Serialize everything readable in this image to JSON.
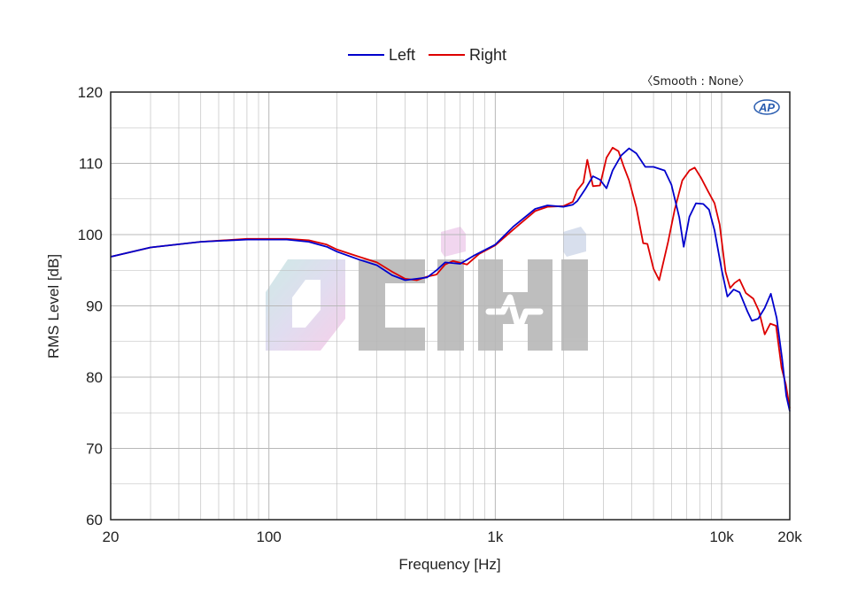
{
  "colors": {
    "left": "#0000cc",
    "right": "#dd0000",
    "grid": "#b8b8b8",
    "frame": "#222222"
  },
  "legend": {
    "left_label": "Left",
    "right_label": "Right"
  },
  "annotation": "〈Smooth : None〉",
  "ap_logo": "AP",
  "watermark_icon": "ocihi-logo-watermark",
  "chart_data": {
    "type": "line",
    "xlabel": "Frequency [Hz]",
    "ylabel": "RMS Level [dB]",
    "xscale": "log",
    "xlim": [
      20,
      20000
    ],
    "ylim": [
      60,
      120
    ],
    "grid": true,
    "legend_position": "top-center",
    "x_ticks": [
      {
        "value": 20,
        "label": "20"
      },
      {
        "value": 100,
        "label": "100"
      },
      {
        "value": 1000,
        "label": "1k"
      },
      {
        "value": 10000,
        "label": "10k"
      },
      {
        "value": 20000,
        "label": "20k"
      }
    ],
    "y_ticks": [
      {
        "value": 60,
        "label": "60"
      },
      {
        "value": 70,
        "label": "70"
      },
      {
        "value": 80,
        "label": "80"
      },
      {
        "value": 90,
        "label": "90"
      },
      {
        "value": 100,
        "label": "100"
      },
      {
        "value": 110,
        "label": "110"
      },
      {
        "value": 120,
        "label": "120"
      }
    ],
    "series": [
      {
        "name": "Left",
        "points": [
          [
            20,
            96.9
          ],
          [
            30,
            98.2
          ],
          [
            50,
            99.0
          ],
          [
            80,
            99.3
          ],
          [
            100,
            99.3
          ],
          [
            120,
            99.3
          ],
          [
            150,
            99.0
          ],
          [
            180,
            98.3
          ],
          [
            200,
            97.6
          ],
          [
            250,
            96.5
          ],
          [
            300,
            95.7
          ],
          [
            350,
            94.3
          ],
          [
            400,
            93.6
          ],
          [
            450,
            93.8
          ],
          [
            500,
            94.0
          ],
          [
            550,
            95.0
          ],
          [
            600,
            96.1
          ],
          [
            700,
            95.9
          ],
          [
            800,
            97.0
          ],
          [
            1000,
            98.6
          ],
          [
            1200,
            101.1
          ],
          [
            1500,
            103.6
          ],
          [
            1700,
            104.1
          ],
          [
            2000,
            103.9
          ],
          [
            2200,
            104.2
          ],
          [
            2300,
            104.7
          ],
          [
            2500,
            106.4
          ],
          [
            2700,
            108.2
          ],
          [
            2900,
            107.7
          ],
          [
            3100,
            106.5
          ],
          [
            3300,
            109.0
          ],
          [
            3600,
            111.1
          ],
          [
            3900,
            112.1
          ],
          [
            4200,
            111.4
          ],
          [
            4600,
            109.5
          ],
          [
            5000,
            109.5
          ],
          [
            5600,
            109.0
          ],
          [
            6000,
            107.0
          ],
          [
            6500,
            102.4
          ],
          [
            6800,
            98.3
          ],
          [
            7200,
            102.5
          ],
          [
            7700,
            104.4
          ],
          [
            8300,
            104.3
          ],
          [
            8800,
            103.5
          ],
          [
            9300,
            100.6
          ],
          [
            10000,
            95.1
          ],
          [
            10600,
            91.3
          ],
          [
            11300,
            92.3
          ],
          [
            12000,
            91.9
          ],
          [
            13000,
            89.2
          ],
          [
            13600,
            87.9
          ],
          [
            14500,
            88.2
          ],
          [
            15500,
            89.7
          ],
          [
            16500,
            91.7
          ],
          [
            17500,
            88.3
          ],
          [
            18500,
            82.6
          ],
          [
            19300,
            77.4
          ],
          [
            20000,
            75.2
          ]
        ]
      },
      {
        "name": "Right",
        "points": [
          [
            20,
            96.9
          ],
          [
            30,
            98.2
          ],
          [
            50,
            99.0
          ],
          [
            80,
            99.4
          ],
          [
            100,
            99.4
          ],
          [
            120,
            99.4
          ],
          [
            150,
            99.2
          ],
          [
            180,
            98.6
          ],
          [
            200,
            97.9
          ],
          [
            250,
            96.9
          ],
          [
            300,
            96.1
          ],
          [
            350,
            94.8
          ],
          [
            400,
            93.8
          ],
          [
            450,
            93.6
          ],
          [
            500,
            94.1
          ],
          [
            550,
            94.4
          ],
          [
            600,
            95.8
          ],
          [
            650,
            96.3
          ],
          [
            750,
            95.8
          ],
          [
            850,
            97.3
          ],
          [
            1000,
            98.5
          ],
          [
            1200,
            100.7
          ],
          [
            1500,
            103.3
          ],
          [
            1700,
            103.9
          ],
          [
            2000,
            104.0
          ],
          [
            2200,
            104.6
          ],
          [
            2300,
            106.2
          ],
          [
            2450,
            107.3
          ],
          [
            2550,
            110.5
          ],
          [
            2700,
            106.8
          ],
          [
            2900,
            106.9
          ],
          [
            3100,
            110.8
          ],
          [
            3300,
            112.2
          ],
          [
            3500,
            111.7
          ],
          [
            3700,
            109.5
          ],
          [
            3900,
            107.6
          ],
          [
            4200,
            103.8
          ],
          [
            4500,
            98.8
          ],
          [
            4700,
            98.7
          ],
          [
            5000,
            95.2
          ],
          [
            5300,
            93.6
          ],
          [
            5800,
            99.0
          ],
          [
            6200,
            103.5
          ],
          [
            6700,
            107.6
          ],
          [
            7200,
            109.0
          ],
          [
            7600,
            109.4
          ],
          [
            8100,
            108.0
          ],
          [
            8700,
            106.1
          ],
          [
            9300,
            104.4
          ],
          [
            9800,
            101.4
          ],
          [
            10400,
            94.8
          ],
          [
            10900,
            92.5
          ],
          [
            11400,
            93.2
          ],
          [
            12000,
            93.7
          ],
          [
            12800,
            91.8
          ],
          [
            13800,
            91.0
          ],
          [
            14600,
            89.3
          ],
          [
            15500,
            86.0
          ],
          [
            16400,
            87.5
          ],
          [
            17400,
            87.2
          ],
          [
            18400,
            81.3
          ],
          [
            19200,
            79.0
          ],
          [
            20000,
            75.6
          ]
        ]
      }
    ]
  }
}
